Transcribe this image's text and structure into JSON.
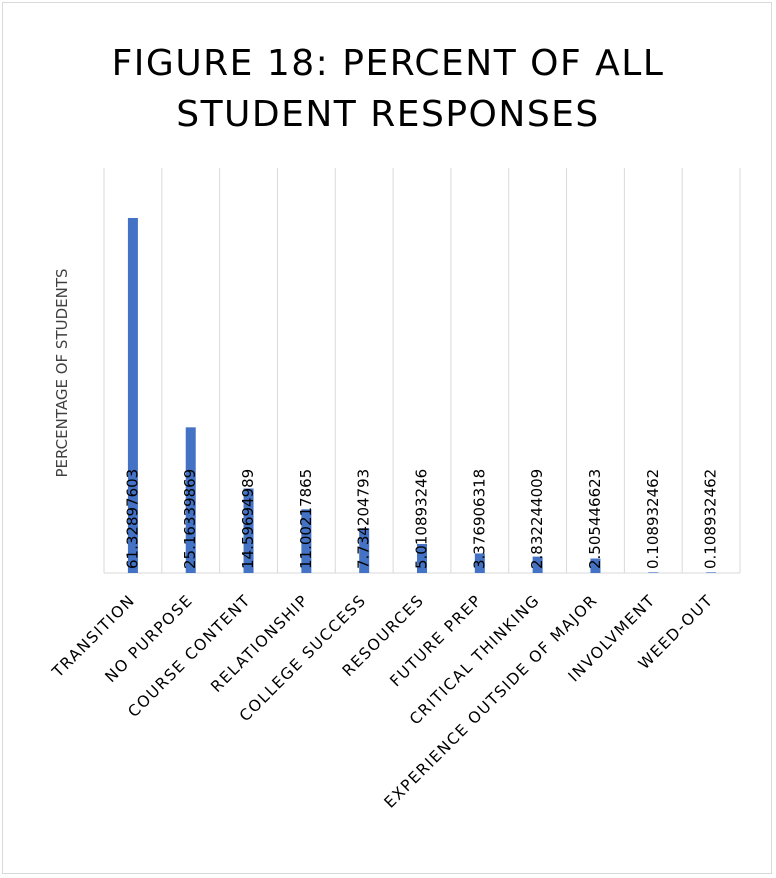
{
  "chart_data": {
    "type": "bar",
    "title": "FIGURE 18: PERCENT OF ALL STUDENT RESPONSES",
    "title_lines": [
      "FIGURE 18: PERCENT OF ALL",
      "STUDENT RESPONSES"
    ],
    "ylabel": "PERCENTAGE OF STUDENTS",
    "xlabel": "",
    "categories": [
      "TRANSITION",
      "NO PURPOSE",
      "COURSE CONTENT",
      "RELATIONSHIP",
      "COLLEGE SUCCESS",
      "RESOURCES",
      "FUTURE PREP",
      "CRITICAL THINKING",
      "EXPERIENCE OUTSIDE OF MAJOR",
      "INVOLVMENT",
      "WEED-OUT"
    ],
    "values": [
      61.32897603,
      25.16339869,
      14.59694989,
      11.00217865,
      7.734204793,
      5.010893246,
      3.376906318,
      2.832244009,
      2.505446623,
      0.108932462,
      0.108932462
    ],
    "data_labels": [
      "61.32897603",
      "25.16339869",
      "14.59694989",
      "11.00217865",
      "7.734204793",
      "5.010893246",
      "3.376906318",
      "2.832244009",
      "2.505446623",
      "0.108932462",
      "0.108932462"
    ],
    "ylim": [
      0,
      61.32897603
    ],
    "bar_color": "#4472c4",
    "grid": true,
    "legend": "none"
  }
}
